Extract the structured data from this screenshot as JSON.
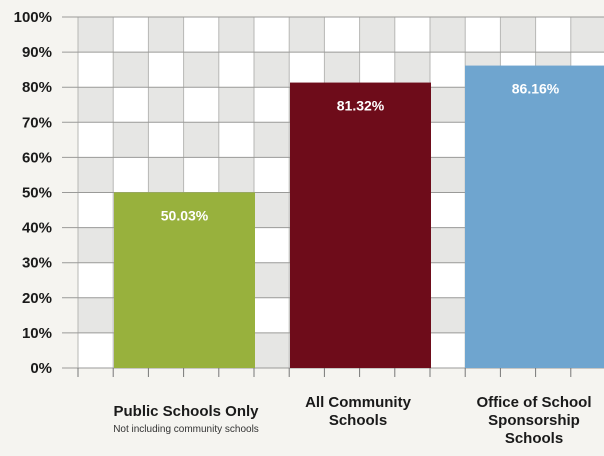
{
  "chart_data": {
    "type": "bar",
    "title": "",
    "xlabel": "",
    "ylabel": "",
    "ylim": [
      0,
      100
    ],
    "y_ticks": [
      "0%",
      "10%",
      "20%",
      "30%",
      "40%",
      "50%",
      "60%",
      "70%",
      "80%",
      "90%",
      "100%"
    ],
    "grid": true,
    "categories": [
      {
        "label_lines": [
          "Public Schools Only"
        ],
        "note": "Not including community schools"
      },
      {
        "label_lines": [
          "All Community",
          "Schools"
        ],
        "note": ""
      },
      {
        "label_lines": [
          "Office of School",
          "Sponsorship",
          "Schools"
        ],
        "note": ""
      }
    ],
    "values": [
      50.03,
      81.32,
      86.16
    ],
    "value_labels": [
      "50.03%",
      "81.32%",
      "86.16%"
    ],
    "colors": [
      "#98b13d",
      "#6e0c1a",
      "#6fa5cf"
    ]
  }
}
